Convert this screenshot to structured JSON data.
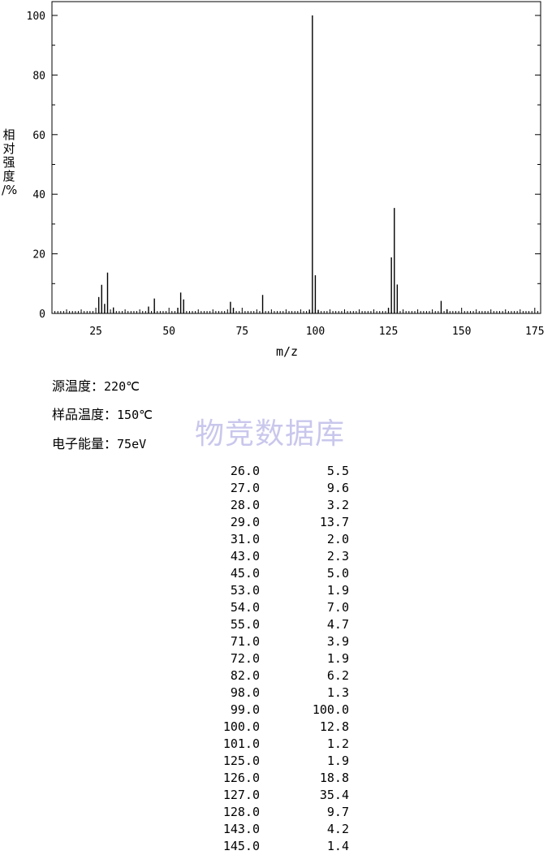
{
  "chart_data": {
    "type": "bar",
    "xlabel": "m/z",
    "ylabel": [
      "相",
      "对",
      "强",
      "度",
      "/%"
    ],
    "xlim": [
      10,
      177
    ],
    "ylim": [
      0,
      100
    ],
    "xticks": [
      25,
      50,
      75,
      100,
      125,
      150,
      175
    ],
    "yticks": [
      0,
      20,
      40,
      60,
      80,
      100
    ],
    "grid": false,
    "peaks": [
      {
        "mz": 26.0,
        "intensity": 5.5
      },
      {
        "mz": 27.0,
        "intensity": 9.6
      },
      {
        "mz": 28.0,
        "intensity": 3.2
      },
      {
        "mz": 29.0,
        "intensity": 13.7
      },
      {
        "mz": 31.0,
        "intensity": 2.0
      },
      {
        "mz": 43.0,
        "intensity": 2.3
      },
      {
        "mz": 45.0,
        "intensity": 5.0
      },
      {
        "mz": 53.0,
        "intensity": 1.9
      },
      {
        "mz": 54.0,
        "intensity": 7.0
      },
      {
        "mz": 55.0,
        "intensity": 4.7
      },
      {
        "mz": 71.0,
        "intensity": 3.9
      },
      {
        "mz": 72.0,
        "intensity": 1.9
      },
      {
        "mz": 82.0,
        "intensity": 6.2
      },
      {
        "mz": 98.0,
        "intensity": 1.3
      },
      {
        "mz": 99.0,
        "intensity": 100.0
      },
      {
        "mz": 100.0,
        "intensity": 12.8
      },
      {
        "mz": 101.0,
        "intensity": 1.2
      },
      {
        "mz": 125.0,
        "intensity": 1.9
      },
      {
        "mz": 126.0,
        "intensity": 18.8
      },
      {
        "mz": 127.0,
        "intensity": 35.4
      },
      {
        "mz": 128.0,
        "intensity": 9.7
      },
      {
        "mz": 143.0,
        "intensity": 4.2
      },
      {
        "mz": 145.0,
        "intensity": 1.4
      }
    ]
  },
  "info": {
    "source_temp_label": "源温度：",
    "source_temp_value": "220℃",
    "sample_temp_label": "样品温度：",
    "sample_temp_value": "150℃",
    "electron_energy_label": "电子能量：",
    "electron_energy_value": "75eV"
  },
  "watermark": "物竞数据库",
  "peak_table": [
    [
      "26.0",
      "5.5"
    ],
    [
      "27.0",
      "9.6"
    ],
    [
      "28.0",
      "3.2"
    ],
    [
      "29.0",
      "13.7"
    ],
    [
      "31.0",
      "2.0"
    ],
    [
      "43.0",
      "2.3"
    ],
    [
      "45.0",
      "5.0"
    ],
    [
      "53.0",
      "1.9"
    ],
    [
      "54.0",
      "7.0"
    ],
    [
      "55.0",
      "4.7"
    ],
    [
      "71.0",
      "3.9"
    ],
    [
      "72.0",
      "1.9"
    ],
    [
      "82.0",
      "6.2"
    ],
    [
      "98.0",
      "1.3"
    ],
    [
      "99.0",
      "100.0"
    ],
    [
      "100.0",
      "12.8"
    ],
    [
      "101.0",
      "1.2"
    ],
    [
      "125.0",
      "1.9"
    ],
    [
      "126.0",
      "18.8"
    ],
    [
      "127.0",
      "35.4"
    ],
    [
      "128.0",
      "9.7"
    ],
    [
      "143.0",
      "4.2"
    ],
    [
      "145.0",
      "1.4"
    ]
  ]
}
